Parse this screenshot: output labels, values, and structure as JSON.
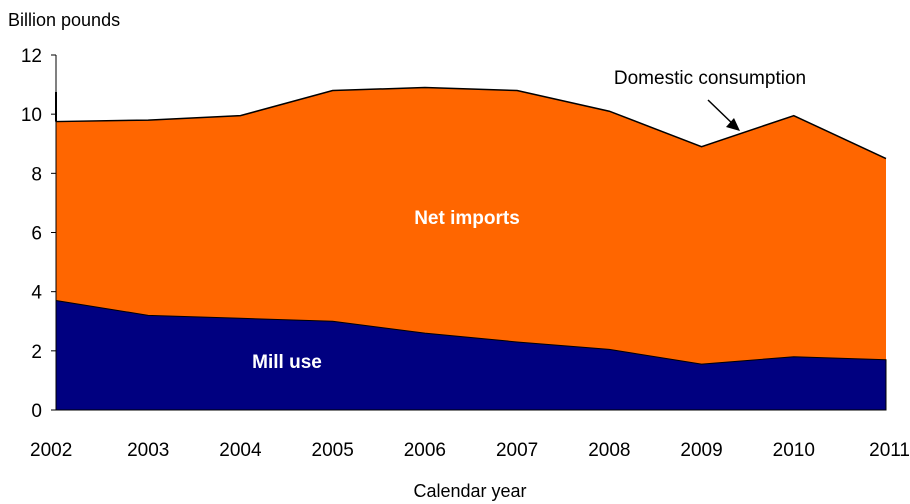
{
  "chart_data": {
    "type": "area",
    "stacked": true,
    "title": "",
    "ylabel": "Billion pounds",
    "xlabel": "Calendar year",
    "x": [
      "2002",
      "2003",
      "2004",
      "2005",
      "2006",
      "2007",
      "2008",
      "2009",
      "2010",
      "2011"
    ],
    "ylim": [
      0,
      12
    ],
    "yticks": [
      "0",
      "2",
      "4",
      "6",
      "8",
      "10",
      "12"
    ],
    "grid": false,
    "series": [
      {
        "name": "Mill use",
        "color": "#000080",
        "values": [
          3.7,
          3.2,
          3.1,
          3.0,
          2.6,
          2.3,
          2.05,
          1.55,
          1.8,
          1.7
        ]
      },
      {
        "name": "Net imports",
        "color": "#ff6600",
        "values": [
          6.05,
          6.6,
          6.85,
          7.8,
          8.3,
          8.5,
          8.05,
          7.35,
          8.15,
          6.8
        ]
      }
    ],
    "total_line": {
      "name": "Domestic consumption",
      "color": "#000000"
    }
  }
}
